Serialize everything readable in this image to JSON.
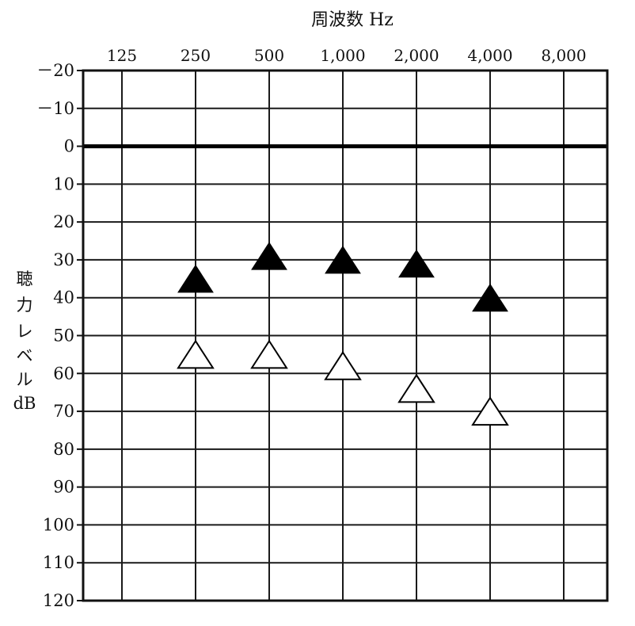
{
  "chart_data": {
    "type": "scatter",
    "title": "周波数 Hz",
    "ylabel": [
      "聴",
      "力",
      "レ",
      "ベ",
      "ル",
      "dB"
    ],
    "x_tick_labels": [
      "125",
      "250",
      "500",
      "1,000",
      "2,000",
      "4,000",
      "8,000"
    ],
    "y_ticks": [
      -20,
      -10,
      0,
      10,
      20,
      30,
      40,
      50,
      60,
      70,
      80,
      90,
      100,
      110,
      120
    ],
    "y_tick_labels": [
      "－20",
      "－10",
      "0",
      "10",
      "20",
      "30",
      "40",
      "50",
      "60",
      "70",
      "80",
      "90",
      "100",
      "110",
      "120"
    ],
    "ylim": [
      -20,
      120
    ],
    "y_inverted": true,
    "grid": true,
    "series": [
      {
        "marker": "filled-triangle",
        "color": "#000000",
        "points": [
          {
            "x": "250",
            "y": 35
          },
          {
            "x": "500",
            "y": 29
          },
          {
            "x": "1,000",
            "y": 30
          },
          {
            "x": "2,000",
            "y": 31
          },
          {
            "x": "4,000",
            "y": 40
          }
        ]
      },
      {
        "marker": "open-triangle",
        "color": "#ffffff",
        "points": [
          {
            "x": "250",
            "y": 55
          },
          {
            "x": "500",
            "y": 55
          },
          {
            "x": "1,000",
            "y": 58
          },
          {
            "x": "2,000",
            "y": 64
          },
          {
            "x": "4,000",
            "y": 70
          }
        ]
      }
    ]
  }
}
